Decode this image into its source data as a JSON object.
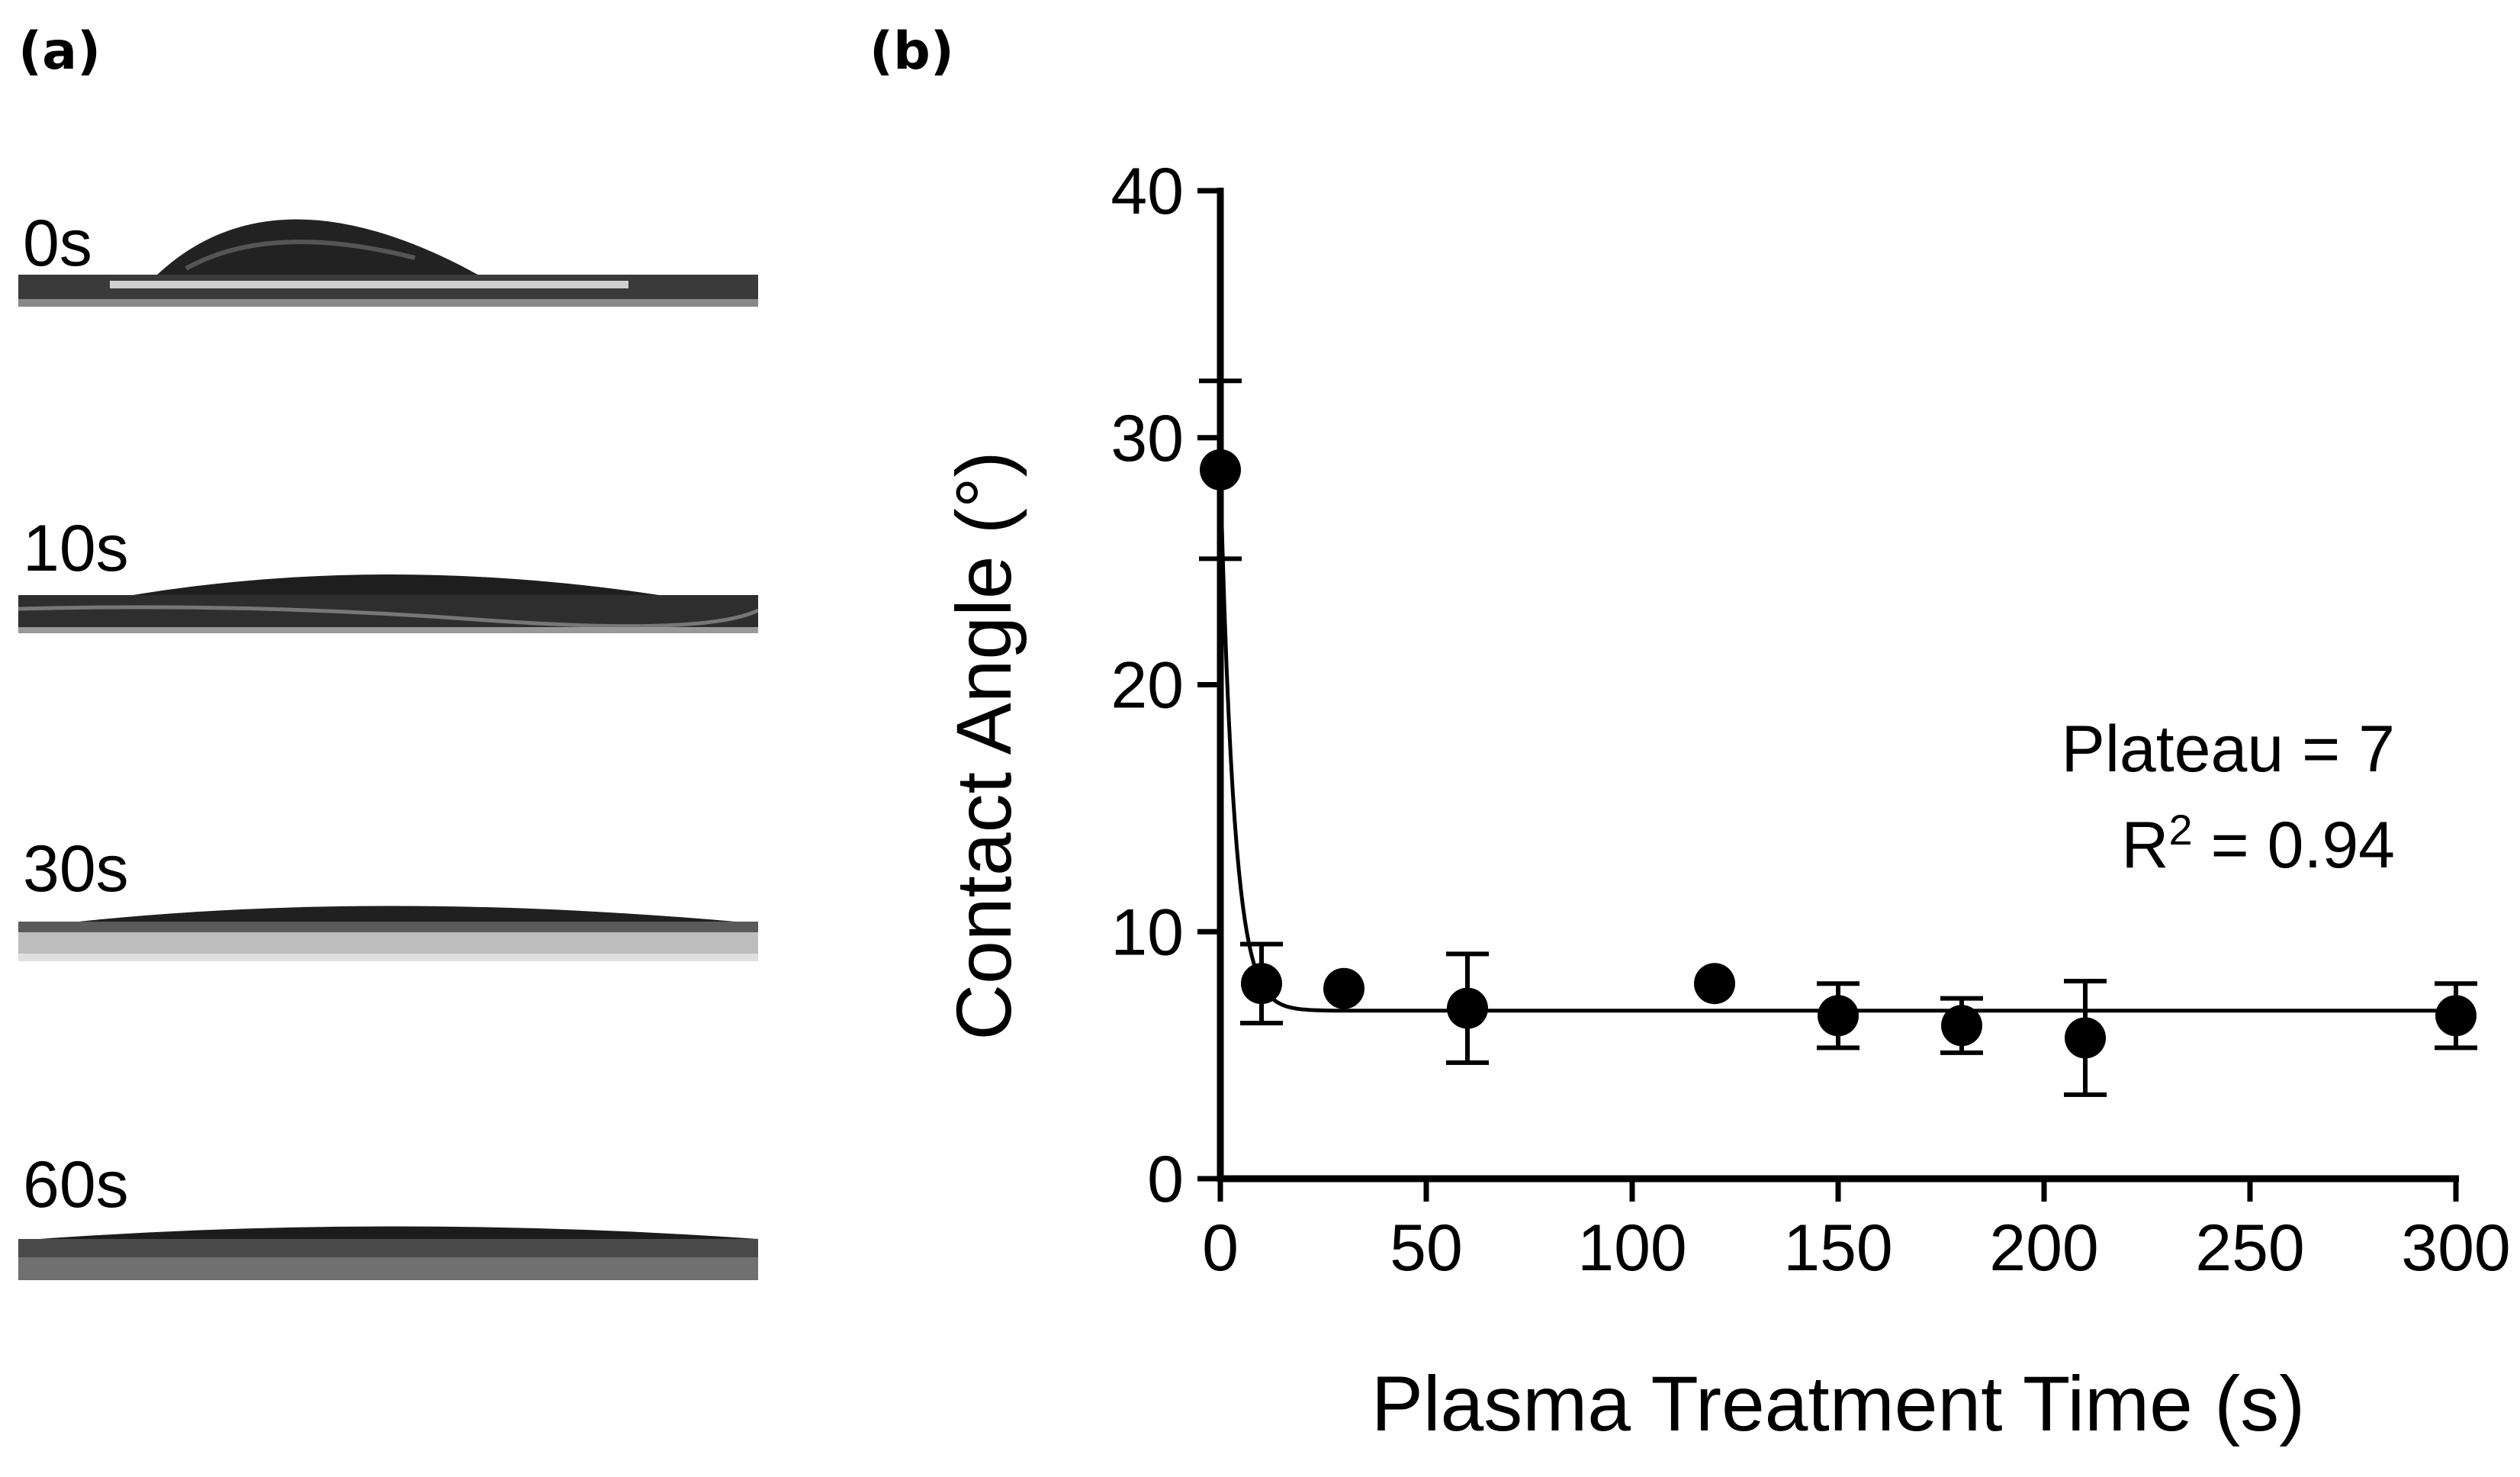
{
  "panel_labels": {
    "a": "(a)",
    "b": "(b)"
  },
  "droplets": [
    {
      "label": "0s"
    },
    {
      "label": "10s"
    },
    {
      "label": "30s"
    },
    {
      "label": "60s"
    }
  ],
  "colors": {
    "ink": "#000000",
    "substrate_dark": "#3a3a3a",
    "substrate_light": "#d8d8d8"
  },
  "chart_data": {
    "type": "scatter",
    "xlabel": "Plasma Treatment Time (s)",
    "ylabel": "Contact Angle (°)",
    "xlim": [
      0,
      300
    ],
    "ylim": [
      0,
      40
    ],
    "x_ticks": [
      "0",
      "50",
      "100",
      "150",
      "200",
      "250",
      "300"
    ],
    "y_ticks": [
      "0",
      "10",
      "20",
      "30",
      "40"
    ],
    "x_tick_values": [
      0,
      50,
      100,
      150,
      200,
      250,
      300
    ],
    "y_tick_values": [
      0,
      10,
      20,
      30,
      40
    ],
    "series": [
      {
        "name": "Contact Angle",
        "x": [
          0,
          10,
          30,
          60,
          120,
          150,
          180,
          210,
          300
        ],
        "y": [
          28.7,
          7.9,
          7.7,
          6.9,
          7.9,
          6.6,
          6.2,
          5.7,
          6.6
        ],
        "err": [
          3.6,
          1.6,
          0,
          2.2,
          0,
          1.3,
          1.1,
          2.3,
          1.3
        ]
      }
    ],
    "fit": {
      "type": "one-phase exponential decay",
      "y0": 28.7,
      "plateau": 6.8,
      "k": 0.3
    },
    "annotations": {
      "plateau": "Plateau = 7",
      "r2_label": "R",
      "r2_sup": "2",
      "r2_value": " = 0.94"
    }
  }
}
